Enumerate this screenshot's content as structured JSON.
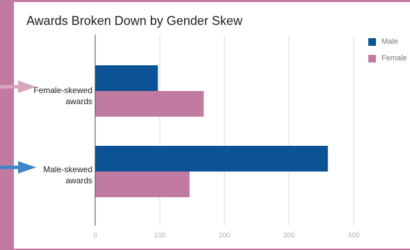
{
  "chart_data": {
    "type": "bar",
    "orientation": "horizontal",
    "title": "Awards Broken Down by Gender Skew",
    "categories": [
      [
        "Female-skewed",
        "awards"
      ],
      [
        "Male-skewed",
        "awards"
      ]
    ],
    "series": [
      {
        "name": "Male",
        "color": "#0b5394",
        "values": [
          97,
          360
        ]
      },
      {
        "name": "Female",
        "color": "#c27ba0",
        "values": [
          168,
          146
        ]
      }
    ],
    "xlim": [
      0,
      400
    ],
    "xticks": [
      0,
      100,
      200,
      300,
      400
    ],
    "grid": true,
    "legend_position": "right",
    "annotations": [
      {
        "type": "arrow",
        "target": "Female-skewed awards",
        "color": "#d5a6bd"
      },
      {
        "type": "arrow",
        "target": "Male-skewed awards",
        "color": "#3d85c6"
      }
    ]
  },
  "frame": {
    "color": "#c27ba0"
  }
}
